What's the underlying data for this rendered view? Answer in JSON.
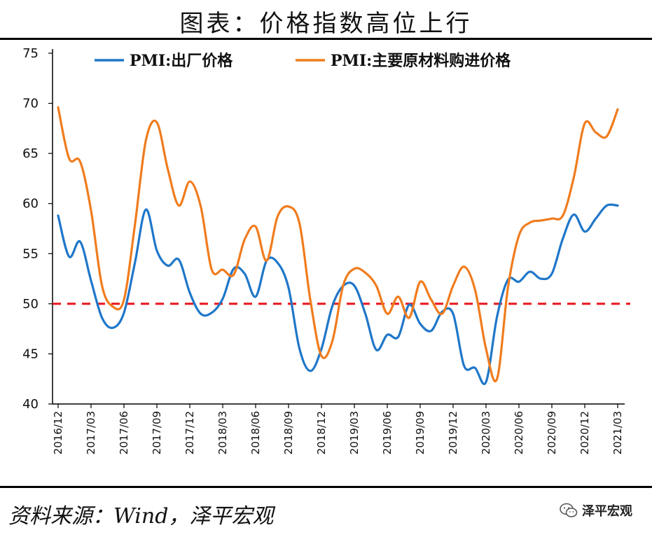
{
  "title": "图表：价格指数高位上行",
  "source": "资料来源：Wind，泽平宏观",
  "watermark": "泽平宏观",
  "colors": {
    "series1": "#1f77c9",
    "series2": "#f07c1e",
    "reference": "#e8141b"
  },
  "chart_data": {
    "type": "line",
    "title": "图表：价格指数高位上行",
    "xlabel": "",
    "ylabel": "",
    "ylim": [
      40,
      75
    ],
    "yticks": [
      40,
      45,
      50,
      55,
      60,
      65,
      70,
      75
    ],
    "x": [
      "2016/12",
      "2017/01",
      "2017/02",
      "2017/03",
      "2017/04",
      "2017/05",
      "2017/06",
      "2017/07",
      "2017/08",
      "2017/09",
      "2017/10",
      "2017/11",
      "2017/12",
      "2018/01",
      "2018/02",
      "2018/03",
      "2018/04",
      "2018/05",
      "2018/06",
      "2018/07",
      "2018/08",
      "2018/09",
      "2018/10",
      "2018/11",
      "2018/12",
      "2019/01",
      "2019/02",
      "2019/03",
      "2019/04",
      "2019/05",
      "2019/06",
      "2019/07",
      "2019/08",
      "2019/09",
      "2019/10",
      "2019/11",
      "2019/12",
      "2020/01",
      "2020/02",
      "2020/03",
      "2020/04",
      "2020/05",
      "2020/06",
      "2020/07",
      "2020/08",
      "2020/09",
      "2020/10",
      "2020/11",
      "2020/12",
      "2021/01",
      "2021/02",
      "2021/03"
    ],
    "xtick_labels": [
      "2016/12",
      "2017/03",
      "2017/06",
      "2017/09",
      "2017/12",
      "2018/03",
      "2018/06",
      "2018/09",
      "2018/12",
      "2019/03",
      "2019/06",
      "2019/09",
      "2019/12",
      "2020/03",
      "2020/06",
      "2020/09",
      "2020/12",
      "2021/03"
    ],
    "series": [
      {
        "name": "PMI:出厂价格",
        "values": [
          58.8,
          54.7,
          56.2,
          52.3,
          48.6,
          47.6,
          49.1,
          54.1,
          59.4,
          55.3,
          53.8,
          54.4,
          51.1,
          49.0,
          49.1,
          50.5,
          53.5,
          53.0,
          50.7,
          54.3,
          54.1,
          51.6,
          45.5,
          43.3,
          45.5,
          49.8,
          51.8,
          51.8,
          49.0,
          45.4,
          46.9,
          46.7,
          49.9,
          48.0,
          47.3,
          49.2,
          49.0,
          43.8,
          43.6,
          42.2,
          48.7,
          52.4,
          52.2,
          53.2,
          52.5,
          53.0,
          56.5,
          58.9,
          57.2,
          58.5,
          59.8,
          59.8
        ]
      },
      {
        "name": "PMI:主要原材料购进价格",
        "values": [
          69.6,
          64.5,
          64.2,
          59.3,
          51.8,
          49.7,
          50.4,
          57.9,
          66.3,
          68.1,
          63.4,
          59.8,
          62.2,
          59.7,
          53.4,
          53.4,
          52.9,
          56.4,
          57.7,
          54.3,
          58.7,
          59.7,
          58.0,
          50.3,
          44.8,
          46.3,
          51.9,
          53.5,
          53.1,
          51.8,
          49.0,
          50.7,
          48.6,
          52.2,
          50.4,
          49.0,
          51.8,
          53.7,
          51.4,
          45.5,
          42.5,
          51.6,
          56.8,
          58.1,
          58.3,
          58.5,
          58.8,
          62.6,
          68.0,
          67.1,
          66.7,
          69.4
        ]
      }
    ],
    "reference_line": {
      "value": 50,
      "style": "dashed"
    },
    "legend": {
      "position": "top-center",
      "entries": [
        "PMI:出厂价格",
        "PMI:主要原材料购进价格"
      ]
    },
    "grid": false
  }
}
